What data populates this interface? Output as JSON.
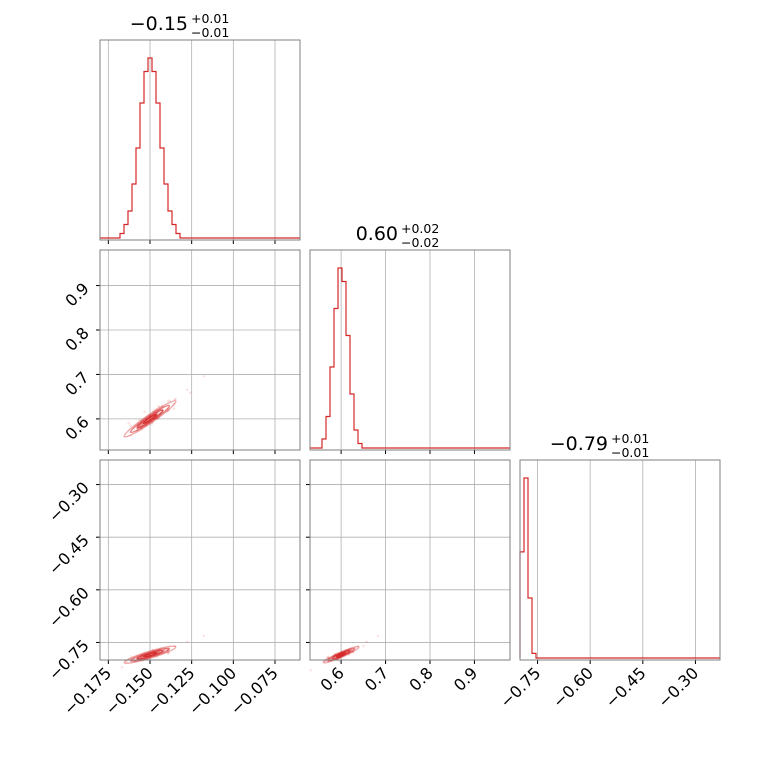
{
  "chart_data": {
    "type": "corner",
    "parameters": [
      {
        "axis_range": [
          -0.18,
          -0.06
        ],
        "ticks": [
          -0.175,
          -0.15,
          -0.125,
          -0.1,
          -0.075
        ],
        "tick_labels": [
          "−0.175",
          "−0.150",
          "−0.125",
          "−0.100",
          "−0.075"
        ],
        "title_value": "−0.15",
        "title_plus": "+0.01",
        "title_minus": "−0.01",
        "median": -0.15,
        "sigma": 0.0062
      },
      {
        "axis_range": [
          0.53,
          0.98
        ],
        "ticks": [
          0.6,
          0.7,
          0.8,
          0.9
        ],
        "tick_labels": [
          "0.6",
          "0.7",
          "0.8",
          "0.9"
        ],
        "title_value": "0.60",
        "title_plus": "+0.02",
        "title_minus": "−0.02",
        "median": 0.6,
        "sigma": 0.016
      },
      {
        "axis_range": [
          -0.8,
          -0.23
        ],
        "ticks": [
          -0.75,
          -0.6,
          -0.45,
          -0.3
        ],
        "tick_labels": [
          "−0.75",
          "−0.60",
          "−0.45",
          "−0.30"
        ],
        "title_value": "−0.79",
        "title_plus": "+0.01",
        "title_minus": "−0.01",
        "median": -0.785,
        "sigma": 0.009
      }
    ],
    "grid": true,
    "colors": {
      "series": "#d62728",
      "frame": "#7f7f7f",
      "grid": "#b0b0b0"
    }
  }
}
